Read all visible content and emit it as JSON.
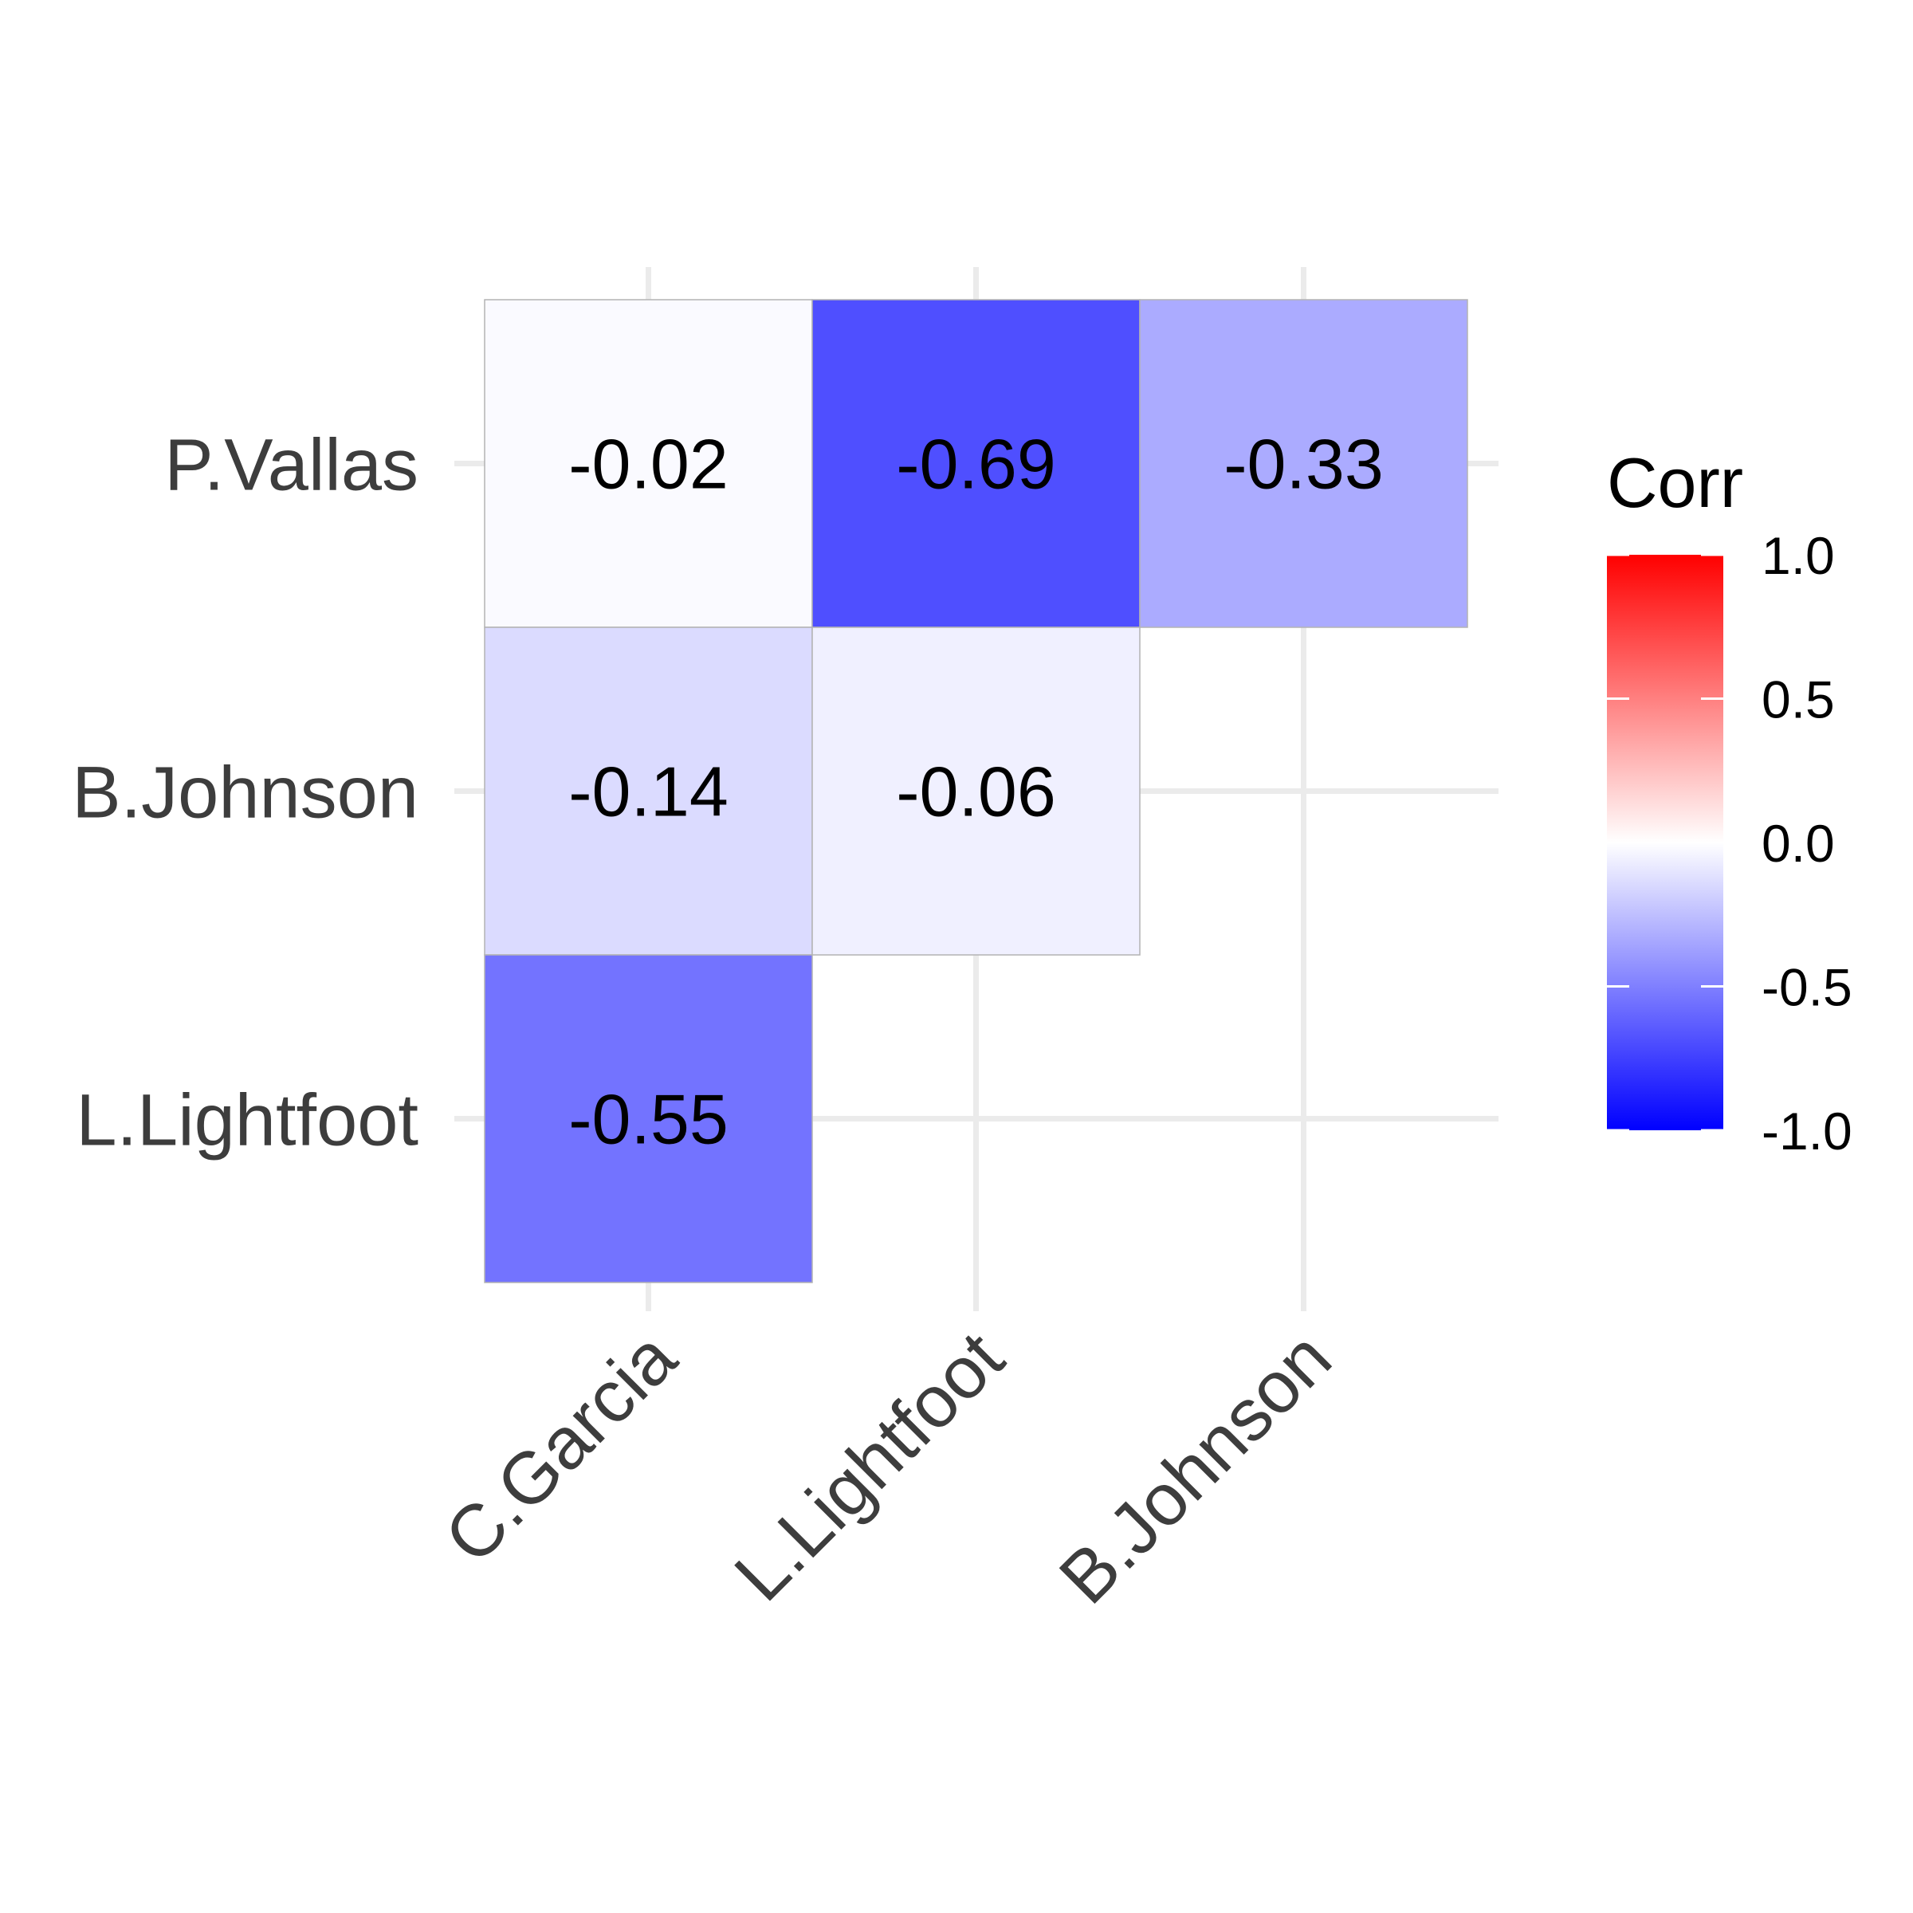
{
  "chart_data": {
    "type": "heatmap",
    "x_categories": [
      "C.Garcia",
      "L.Lightfoot",
      "B.Johnson"
    ],
    "y_categories": [
      "L.Lightfoot",
      "B.Johnson",
      "P.Vallas"
    ],
    "cells": [
      {
        "x": "C.Garcia",
        "y": "P.Vallas",
        "value": -0.02,
        "label": "-0.02"
      },
      {
        "x": "L.Lightfoot",
        "y": "P.Vallas",
        "value": -0.69,
        "label": "-0.69"
      },
      {
        "x": "B.Johnson",
        "y": "P.Vallas",
        "value": -0.33,
        "label": "-0.33"
      },
      {
        "x": "C.Garcia",
        "y": "B.Johnson",
        "value": -0.14,
        "label": "-0.14"
      },
      {
        "x": "L.Lightfoot",
        "y": "B.Johnson",
        "value": -0.06,
        "label": "-0.06"
      },
      {
        "x": "C.Garcia",
        "y": "L.Lightfoot",
        "value": -0.55,
        "label": "-0.55"
      }
    ],
    "legend": {
      "title": "Corr",
      "range": [
        -1,
        1
      ],
      "breaks": [
        1.0,
        0.5,
        0.0,
        -0.5,
        -1.0
      ],
      "break_labels": [
        "1.0",
        "0.5",
        "0.0",
        "-0.5",
        "-1.0"
      ],
      "placement": "right"
    },
    "colors": {
      "low": "#0000ff",
      "mid": "#ffffff",
      "high": "#ff0000",
      "grid": "#ebebeb",
      "cell_border": "#b3b3b3"
    },
    "grid": true,
    "title": "",
    "xlabel": "",
    "ylabel": ""
  }
}
